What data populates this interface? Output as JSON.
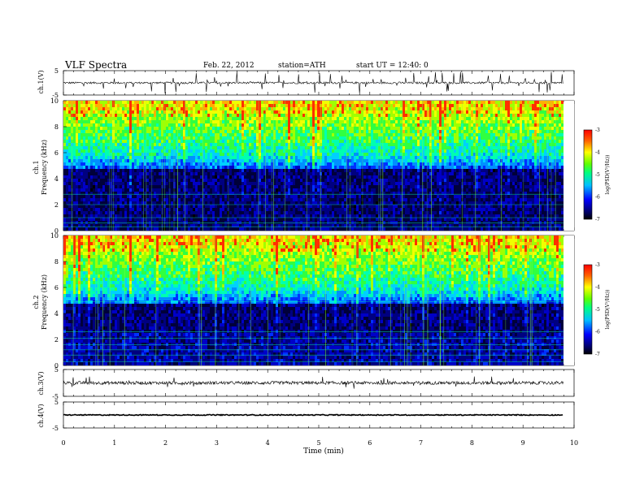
{
  "header": {
    "title": "VLF Spectra",
    "date": "Feb. 22, 2012",
    "station": "station=ATH",
    "start": "start UT = 12:40: 0"
  },
  "chart_data": [
    {
      "type": "line",
      "panel": "ch1-waveform",
      "ylabel": "ch.1(V)",
      "ylim": [
        -5,
        5
      ],
      "yticks": [
        "5",
        "-5"
      ],
      "xlim": [
        0,
        10
      ],
      "baseline": 0,
      "noise": "moderate with frequent spikes"
    },
    {
      "type": "heatmap",
      "panel": "ch1-spectrogram",
      "ylabel_lines": [
        "ch.1",
        "Frequency (kHz)"
      ],
      "xlim": [
        0,
        10
      ],
      "ylim": [
        0,
        10
      ],
      "yticks": [
        "0",
        "2",
        "4",
        "6",
        "8",
        "10"
      ],
      "data_end_min": 9.8,
      "colorbar": {
        "label": "log(PSD(V²/Hz))",
        "range": [
          -7,
          -3
        ],
        "ticks": [
          "-3",
          "-4",
          "-5",
          "-6",
          "-7"
        ]
      }
    },
    {
      "type": "heatmap",
      "panel": "ch2-spectrogram",
      "ylabel_lines": [
        "ch.2",
        "Frequency (kHz)"
      ],
      "xlim": [
        0,
        10
      ],
      "ylim": [
        0,
        10
      ],
      "yticks": [
        "0",
        "2",
        "4",
        "6",
        "8",
        "10"
      ],
      "data_end_min": 9.8,
      "colorbar": {
        "label": "log(PSD(V²/Hz))",
        "range": [
          -7,
          -3
        ],
        "ticks": [
          "-3",
          "-4",
          "-5",
          "-6",
          "-7"
        ]
      }
    },
    {
      "type": "line",
      "panel": "ch3-waveform",
      "ylabel": "ch.3(V)",
      "ylim": [
        -5,
        5
      ],
      "yticks": [
        "5",
        "-5"
      ],
      "xlim": [
        0,
        10
      ],
      "baseline": 0,
      "noise": "dense"
    },
    {
      "type": "line",
      "panel": "ch4-waveform",
      "ylabel": "ch.4(V)",
      "ylim": [
        -5,
        5
      ],
      "yticks": [
        "5",
        "-5"
      ],
      "xlim": [
        0,
        10
      ],
      "baseline": 0,
      "noise": "low"
    }
  ],
  "xaxis": {
    "label": "Time (min)",
    "ticks": [
      "0",
      "1",
      "2",
      "3",
      "4",
      "5",
      "6",
      "7",
      "8",
      "9",
      "10"
    ]
  }
}
